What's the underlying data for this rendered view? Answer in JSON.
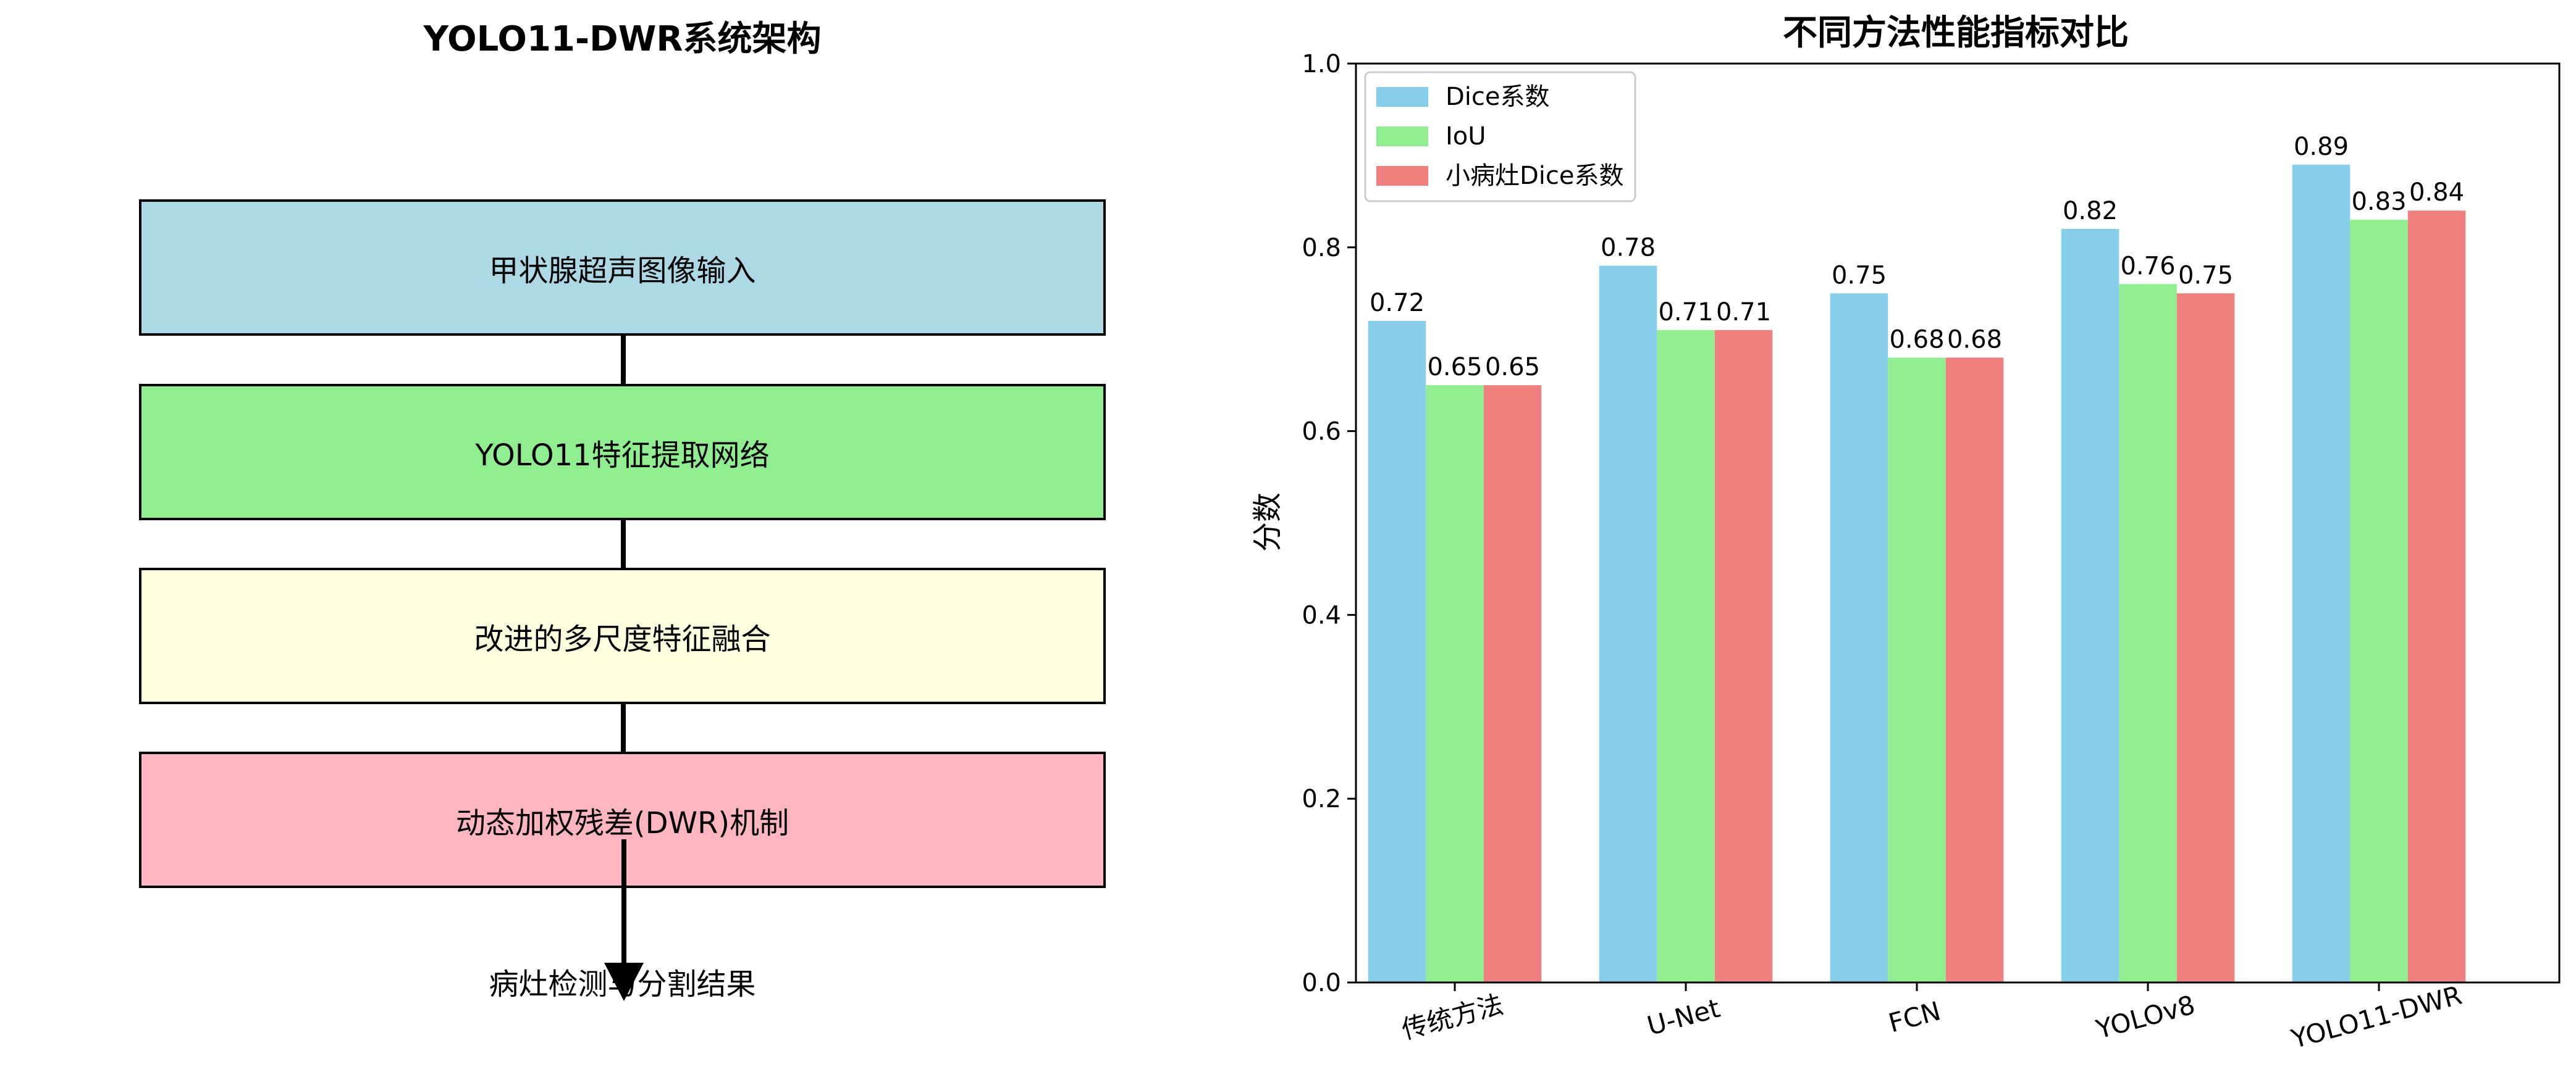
{
  "architecture": {
    "title": "YOLO11-DWR系统架构",
    "boxes": [
      {
        "label": "甲状腺超声图像输入",
        "color": "#add8e6"
      },
      {
        "label": "YOLO11特征提取网络",
        "color": "#90ee90"
      },
      {
        "label": "改进的多尺度特征融合",
        "color": "#ffffe0"
      },
      {
        "label": "动态加权残差(DWR)机制",
        "color": "#ffb6c1"
      }
    ],
    "output_label": "病灶检测与分割结果"
  },
  "chart_data": {
    "type": "bar",
    "title": "不同方法性能指标对比",
    "xlabel": "",
    "ylabel": "分数",
    "ylim": [
      0,
      1.0
    ],
    "yticks": [
      "0.0",
      "0.2",
      "0.4",
      "0.6",
      "0.8",
      "1.0"
    ],
    "categories": [
      "传统方法",
      "U-Net",
      "FCN",
      "YOLOv8",
      "YOLO11-DWR"
    ],
    "series": [
      {
        "name": "Dice系数",
        "color": "#87ceeb",
        "values": [
          0.72,
          0.78,
          0.75,
          0.82,
          0.89
        ]
      },
      {
        "name": "IoU",
        "color": "#90ee90",
        "values": [
          0.65,
          0.71,
          0.68,
          0.76,
          0.83
        ]
      },
      {
        "name": "小病灶Dice系数",
        "color": "#f08080",
        "values": [
          0.65,
          0.71,
          0.68,
          0.75,
          0.84
        ]
      }
    ],
    "legend_position": "top-left",
    "grid": false
  }
}
